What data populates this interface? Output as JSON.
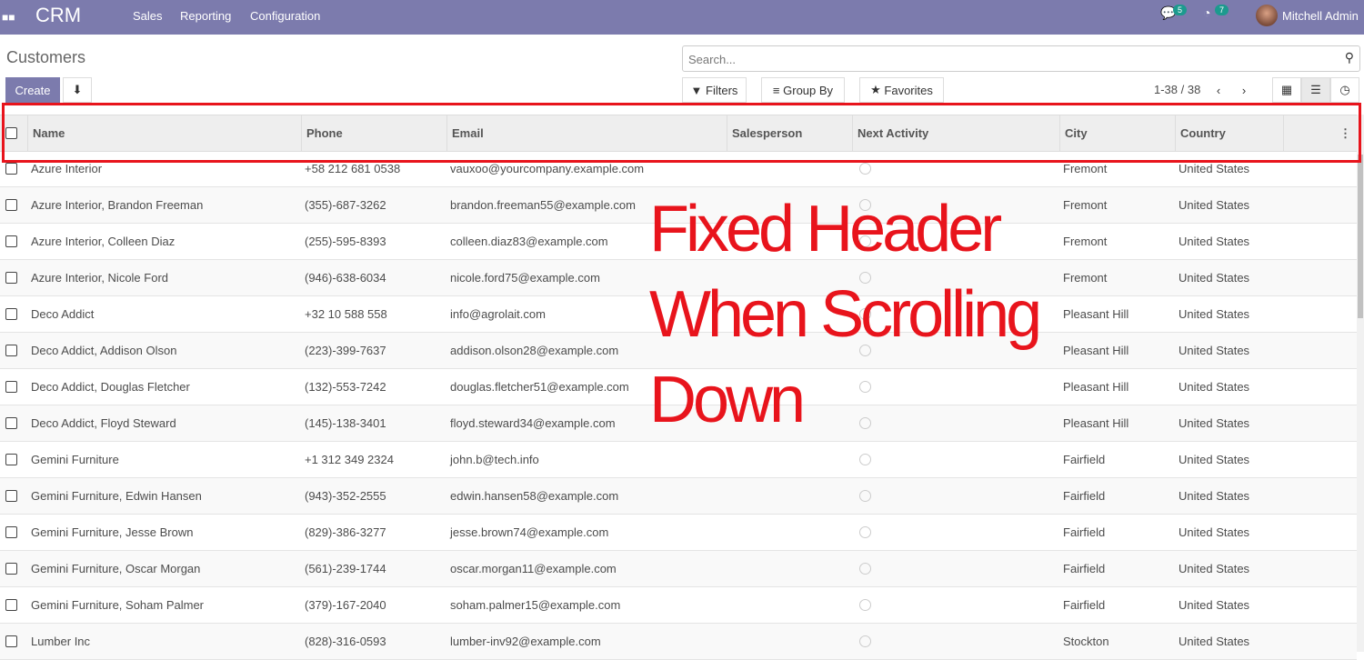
{
  "navbar": {
    "app": "CRM",
    "menu": [
      "Sales",
      "Reporting",
      "Configuration"
    ],
    "messages_count": "5",
    "activities_count": "7",
    "user": "Mitchell Admin"
  },
  "page": {
    "title": "Customers",
    "create": "Create",
    "search_placeholder": "Search...",
    "filters": "Filters",
    "group_by": "Group By",
    "favorites": "Favorites",
    "pager": "1-38 / 38"
  },
  "columns": [
    "Name",
    "Phone",
    "Email",
    "Salesperson",
    "Next Activity",
    "City",
    "Country"
  ],
  "rows": [
    {
      "name": "Azure Interior",
      "phone": "+58 212 681 0538",
      "email": "vauxoo@yourcompany.example.com",
      "city": "Fremont",
      "country": "United States"
    },
    {
      "name": "Azure Interior, Brandon Freeman",
      "phone": "(355)-687-3262",
      "email": "brandon.freeman55@example.com",
      "city": "Fremont",
      "country": "United States"
    },
    {
      "name": "Azure Interior, Colleen Diaz",
      "phone": "(255)-595-8393",
      "email": "colleen.diaz83@example.com",
      "city": "Fremont",
      "country": "United States"
    },
    {
      "name": "Azure Interior, Nicole Ford",
      "phone": "(946)-638-6034",
      "email": "nicole.ford75@example.com",
      "city": "Fremont",
      "country": "United States"
    },
    {
      "name": "Deco Addict",
      "phone": "+32 10 588 558",
      "email": "info@agrolait.com",
      "city": "Pleasant Hill",
      "country": "United States"
    },
    {
      "name": "Deco Addict, Addison Olson",
      "phone": "(223)-399-7637",
      "email": "addison.olson28@example.com",
      "city": "Pleasant Hill",
      "country": "United States"
    },
    {
      "name": "Deco Addict, Douglas Fletcher",
      "phone": "(132)-553-7242",
      "email": "douglas.fletcher51@example.com",
      "city": "Pleasant Hill",
      "country": "United States"
    },
    {
      "name": "Deco Addict, Floyd Steward",
      "phone": "(145)-138-3401",
      "email": "floyd.steward34@example.com",
      "city": "Pleasant Hill",
      "country": "United States"
    },
    {
      "name": "Gemini Furniture",
      "phone": "+1 312 349 2324",
      "email": "john.b@tech.info",
      "city": "Fairfield",
      "country": "United States"
    },
    {
      "name": "Gemini Furniture, Edwin Hansen",
      "phone": "(943)-352-2555",
      "email": "edwin.hansen58@example.com",
      "city": "Fairfield",
      "country": "United States"
    },
    {
      "name": "Gemini Furniture, Jesse Brown",
      "phone": "(829)-386-3277",
      "email": "jesse.brown74@example.com",
      "city": "Fairfield",
      "country": "United States"
    },
    {
      "name": "Gemini Furniture, Oscar Morgan",
      "phone": "(561)-239-1744",
      "email": "oscar.morgan11@example.com",
      "city": "Fairfield",
      "country": "United States"
    },
    {
      "name": "Gemini Furniture, Soham Palmer",
      "phone": "(379)-167-2040",
      "email": "soham.palmer15@example.com",
      "city": "Fairfield",
      "country": "United States"
    },
    {
      "name": "Lumber Inc",
      "phone": "(828)-316-0593",
      "email": "lumber-inv92@example.com",
      "city": "Stockton",
      "country": "United States"
    }
  ],
  "annotation": "Fixed Header\nWhen Scrolling\nDown"
}
